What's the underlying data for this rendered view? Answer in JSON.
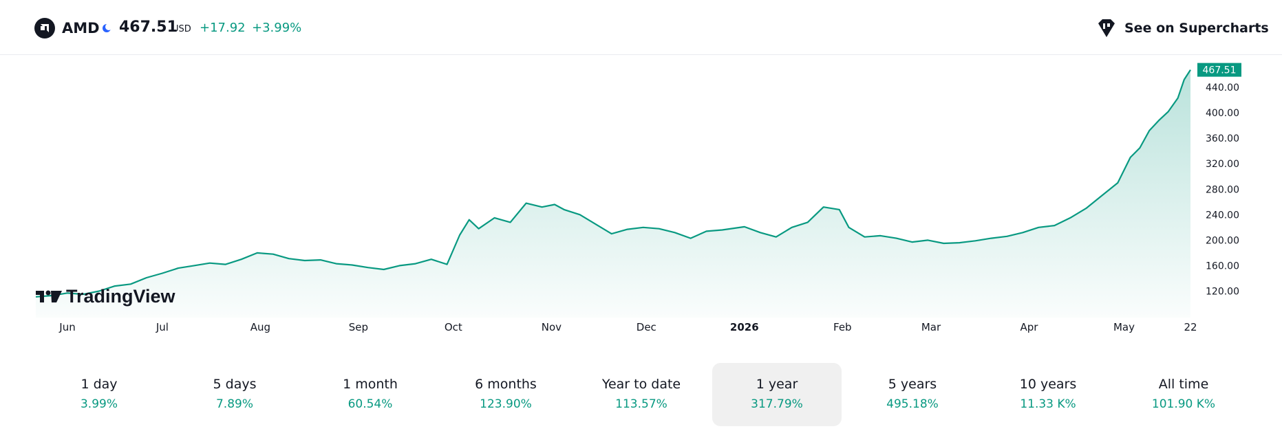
{
  "header": {
    "ticker": "AMD",
    "price": "467.51",
    "currency": "USD",
    "change": "+17.92",
    "change_percent": "+3.99%",
    "supercharts_label": "See on Supercharts",
    "icons": [
      "amd-logo-icon",
      "moon-icon",
      "supercharts-icon"
    ]
  },
  "watermark": "TradingView",
  "colors": {
    "accent": "#089981",
    "text": "#131722",
    "active_tab_bg": "#f0f0f0"
  },
  "chart_data": {
    "type": "area",
    "title": "",
    "xlabel": "",
    "ylabel": "",
    "ylim": [
      100,
      480
    ],
    "x_ticks": [
      "Jun",
      "Jul",
      "Aug",
      "Sep",
      "Oct",
      "Nov",
      "Dec",
      "2026",
      "Feb",
      "Mar",
      "Apr",
      "May",
      "22"
    ],
    "y_ticks": [
      "120.00",
      "160.00",
      "200.00",
      "240.00",
      "280.00",
      "320.00",
      "360.00",
      "400.00",
      "440.00"
    ],
    "last_price_label": "467.51",
    "series": [
      {
        "x": [
          "2025-05-22",
          "2025-05-27",
          "2025-06-01",
          "2025-06-06",
          "2025-06-11",
          "2025-06-16",
          "2025-06-21",
          "2025-06-26",
          "2025-07-01",
          "2025-07-06",
          "2025-07-11",
          "2025-07-16",
          "2025-07-21",
          "2025-07-26",
          "2025-07-31",
          "2025-08-05",
          "2025-08-10",
          "2025-08-15",
          "2025-08-20",
          "2025-08-25",
          "2025-08-30",
          "2025-09-04",
          "2025-09-09",
          "2025-09-14",
          "2025-09-19",
          "2025-09-24",
          "2025-09-29",
          "2025-10-03",
          "2025-10-06",
          "2025-10-09",
          "2025-10-14",
          "2025-10-19",
          "2025-10-24",
          "2025-10-29",
          "2025-11-02",
          "2025-11-05",
          "2025-11-10",
          "2025-11-15",
          "2025-11-20",
          "2025-11-25",
          "2025-11-30",
          "2025-12-05",
          "2025-12-10",
          "2025-12-15",
          "2025-12-20",
          "2025-12-25",
          "2026-01-01",
          "2026-01-06",
          "2026-01-11",
          "2026-01-16",
          "2026-01-21",
          "2026-01-26",
          "2026-01-31",
          "2026-02-03",
          "2026-02-08",
          "2026-02-13",
          "2026-02-18",
          "2026-02-23",
          "2026-02-28",
          "2026-03-05",
          "2026-03-10",
          "2026-03-15",
          "2026-03-20",
          "2026-03-25",
          "2026-03-30",
          "2026-04-04",
          "2026-04-09",
          "2026-04-14",
          "2026-04-19",
          "2026-04-24",
          "2026-04-29",
          "2026-05-03",
          "2026-05-06",
          "2026-05-09",
          "2026-05-12",
          "2026-05-15",
          "2026-05-18",
          "2026-05-20",
          "2026-05-22"
        ],
        "values": [
          111,
          113,
          117,
          115,
          120,
          128,
          131,
          141,
          148,
          156,
          160,
          164,
          162,
          170,
          180,
          178,
          171,
          168,
          169,
          163,
          161,
          157,
          154,
          160,
          163,
          170,
          162,
          208,
          232,
          218,
          235,
          228,
          258,
          252,
          256,
          248,
          240,
          225,
          210,
          217,
          220,
          218,
          212,
          203,
          214,
          216,
          221,
          212,
          205,
          220,
          228,
          252,
          248,
          220,
          205,
          207,
          203,
          197,
          200,
          195,
          196,
          199,
          203,
          206,
          212,
          220,
          223,
          235,
          250,
          270,
          290,
          330,
          345,
          372,
          388,
          402,
          423,
          452,
          467.51
        ]
      }
    ]
  },
  "periods": [
    {
      "label": "1 day",
      "value": "3.99%",
      "active": false
    },
    {
      "label": "5 days",
      "value": "7.89%",
      "active": false
    },
    {
      "label": "1 month",
      "value": "60.54%",
      "active": false
    },
    {
      "label": "6 months",
      "value": "123.90%",
      "active": false
    },
    {
      "label": "Year to date",
      "value": "113.57%",
      "active": false
    },
    {
      "label": "1 year",
      "value": "317.79%",
      "active": true
    },
    {
      "label": "5 years",
      "value": "495.18%",
      "active": false
    },
    {
      "label": "10 years",
      "value": "11.33 K%",
      "active": false
    },
    {
      "label": "All time",
      "value": "101.90 K%",
      "active": false
    }
  ]
}
